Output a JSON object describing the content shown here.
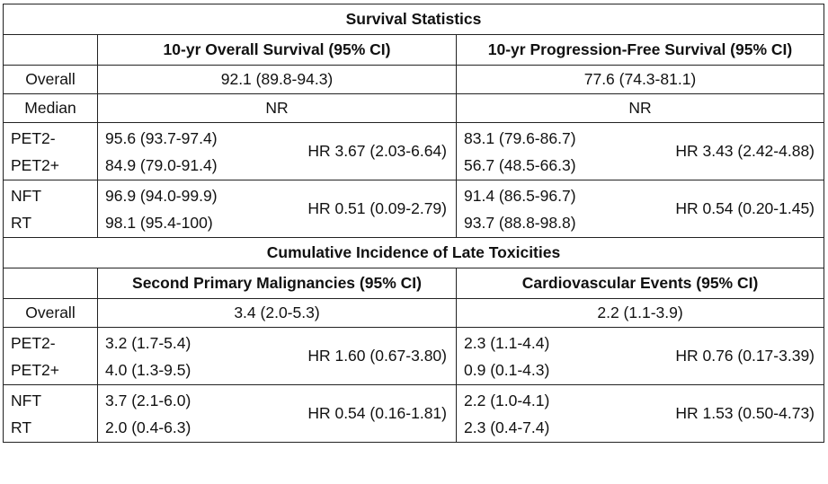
{
  "survival": {
    "title": "Survival Statistics",
    "col1": "10-yr Overall Survival (95% CI)",
    "col2": "10-yr Progression-Free Survival (95% CI)",
    "overall": {
      "label": "Overall",
      "os": "92.1 (89.8-94.3)",
      "pfs": "77.6 (74.3-81.1)"
    },
    "median": {
      "label": "Median",
      "os": "NR",
      "pfs": "NR"
    },
    "pet2": {
      "label_a": "PET2-",
      "label_b": "PET2+",
      "os_a": "95.6 (93.7-97.4)",
      "os_b": "84.9 (79.0-91.4)",
      "os_hr": "HR 3.67 (2.03-6.64)",
      "pfs_a": "83.1 (79.6-86.7)",
      "pfs_b": "56.7 (48.5-66.3)",
      "pfs_hr": "HR 3.43 (2.42-4.88)"
    },
    "nft": {
      "label_a": "NFT",
      "label_b": "RT",
      "os_a": "96.9 (94.0-99.9)",
      "os_b": "98.1 (95.4-100)",
      "os_hr": "HR 0.51 (0.09-2.79)",
      "pfs_a": "91.4 (86.5-96.7)",
      "pfs_b": "93.7 (88.8-98.8)",
      "pfs_hr": "HR 0.54 (0.20-1.45)"
    }
  },
  "toxicity": {
    "title": "Cumulative Incidence of Late Toxicities",
    "col1": "Second Primary Malignancies (95% CI)",
    "col2": "Cardiovascular Events (95% CI)",
    "overall": {
      "label": "Overall",
      "spm": "3.4 (2.0-5.3)",
      "cv": "2.2 (1.1-3.9)"
    },
    "pet2": {
      "label_a": "PET2-",
      "label_b": "PET2+",
      "spm_a": "3.2 (1.7-5.4)",
      "spm_b": "4.0 (1.3-9.5)",
      "spm_hr": "HR 1.60 (0.67-3.80)",
      "cv_a": "2.3 (1.1-4.4)",
      "cv_b": "0.9 (0.1-4.3)",
      "cv_hr": "HR 0.76 (0.17-3.39)"
    },
    "nft": {
      "label_a": "NFT",
      "label_b": "RT",
      "spm_a": "3.7 (2.1-6.0)",
      "spm_b": "2.0 (0.4-6.3)",
      "spm_hr": "HR 0.54 (0.16-1.81)",
      "cv_a": "2.2 (1.0-4.1)",
      "cv_b": "2.3 (0.4-7.4)",
      "cv_hr": "HR 1.53 (0.50-4.73)"
    }
  }
}
